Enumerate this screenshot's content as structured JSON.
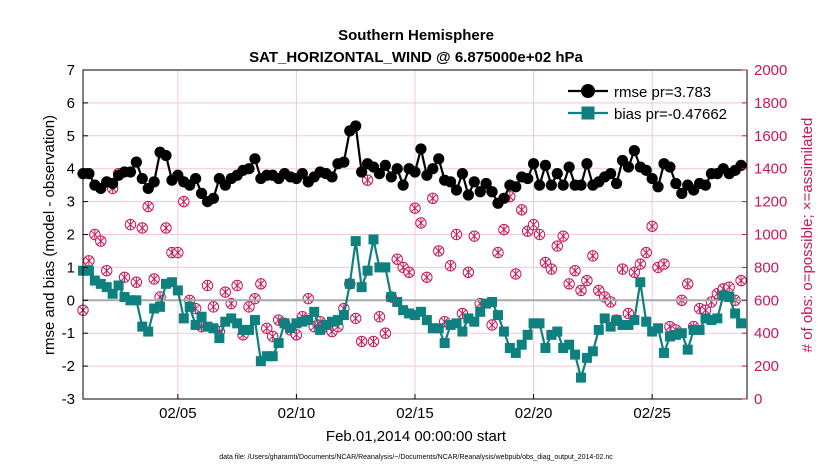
{
  "chart_data": {
    "type": "line",
    "title": "Southern Hemisphere",
    "subtitle": "SAT_HORIZONTAL_WIND @ 6.875000e+02 hPa",
    "xlabel": "Feb.01,2014 00:00:00 start",
    "ylabel": "rmse and bias (model - observation)",
    "y2label": "# of obs: o=possible; ×=assimilated",
    "footnote": "data file: /Users/gharamti/Documents/NCAR/Reanalysis/~/Documents/NCAR/Reanalysis/webpub/obs_diag_output_2014-02.nc",
    "xlim": [
      1,
      29
    ],
    "ylim": [
      -3,
      7
    ],
    "y2lim": [
      0,
      2000
    ],
    "x_ticks": [
      5,
      10,
      15,
      20,
      25
    ],
    "x_tick_labels": [
      "02/05",
      "02/10",
      "02/15",
      "02/20",
      "02/25"
    ],
    "y_ticks": [
      -3,
      -2,
      -1,
      0,
      1,
      2,
      3,
      4,
      5,
      6,
      7
    ],
    "y_tick_labels": [
      "-3",
      "-2",
      "-1",
      "0",
      "1",
      "2",
      "3",
      "4",
      "5",
      "6",
      "7"
    ],
    "y2_ticks": [
      0,
      200,
      400,
      600,
      800,
      1000,
      1200,
      1400,
      1600,
      1800,
      2000
    ],
    "y2_tick_labels": [
      "0",
      "200",
      "400",
      "600",
      "800",
      "1000",
      "1200",
      "1400",
      "1600",
      "1800",
      "2000"
    ],
    "grid": true,
    "legend_position": "top-right",
    "colors": {
      "rmse": "#000000",
      "bias": "#0f8080",
      "obs": "#c8185a",
      "zero_line": "#a8a8a8",
      "grid": "#f0c8d8"
    },
    "series": [
      {
        "name": "rmse pr=3.783",
        "marker": "circle",
        "x": [
          1.0,
          1.25,
          1.5,
          1.75,
          2.0,
          2.25,
          2.5,
          2.75,
          3.0,
          3.25,
          3.5,
          3.75,
          4.0,
          4.25,
          4.5,
          4.75,
          5.0,
          5.25,
          5.5,
          5.75,
          6.0,
          6.25,
          6.5,
          6.75,
          7.0,
          7.25,
          7.5,
          7.75,
          8.0,
          8.25,
          8.5,
          8.75,
          9.0,
          9.25,
          9.5,
          9.75,
          10.0,
          10.25,
          10.5,
          10.75,
          11.0,
          11.25,
          11.5,
          11.75,
          12.0,
          12.25,
          12.5,
          12.75,
          13.0,
          13.25,
          13.5,
          13.75,
          14.0,
          14.25,
          14.5,
          14.75,
          15.0,
          15.25,
          15.5,
          15.75,
          16.0,
          16.25,
          16.5,
          16.75,
          17.0,
          17.25,
          17.5,
          17.75,
          18.0,
          18.25,
          18.5,
          18.75,
          19.0,
          19.25,
          19.5,
          19.75,
          20.0,
          20.25,
          20.5,
          20.75,
          21.0,
          21.25,
          21.5,
          21.75,
          22.0,
          22.25,
          22.5,
          22.75,
          23.0,
          23.25,
          23.5,
          23.75,
          24.0,
          24.25,
          24.5,
          24.75,
          25.0,
          25.25,
          25.5,
          25.75,
          26.0,
          26.25,
          26.5,
          26.75,
          27.0,
          27.25,
          27.5,
          27.75,
          28.0,
          28.25,
          28.5,
          28.75
        ],
        "values": [
          3.85,
          3.85,
          3.5,
          3.4,
          3.6,
          3.55,
          3.8,
          3.9,
          3.9,
          4.2,
          3.7,
          3.4,
          3.6,
          4.5,
          4.4,
          3.65,
          3.8,
          3.6,
          3.5,
          3.7,
          3.25,
          3.0,
          3.1,
          3.7,
          3.5,
          3.7,
          3.8,
          3.95,
          4.0,
          4.3,
          3.7,
          3.8,
          3.8,
          3.7,
          3.85,
          3.75,
          3.7,
          3.85,
          3.6,
          3.75,
          3.9,
          3.85,
          3.75,
          4.15,
          4.2,
          5.15,
          5.3,
          3.9,
          4.15,
          4.05,
          3.85,
          4.1,
          3.75,
          4.0,
          3.5,
          4.0,
          3.9,
          4.6,
          3.8,
          4.0,
          4.3,
          3.65,
          3.6,
          3.35,
          3.85,
          3.2,
          3.6,
          3.3,
          3.55,
          3.3,
          2.95,
          3.1,
          3.5,
          3.45,
          3.75,
          3.7,
          4.15,
          3.5,
          4.1,
          3.5,
          3.85,
          3.5,
          4.05,
          3.5,
          3.5,
          4.15,
          3.5,
          3.6,
          3.75,
          3.85,
          3.55,
          4.25,
          4.05,
          4.55,
          4.05,
          3.95,
          3.7,
          3.45,
          4.15,
          4.05,
          3.55,
          3.25,
          3.5,
          3.35,
          3.55,
          3.5,
          3.85,
          3.85,
          4.0,
          3.85,
          3.95,
          4.1
        ]
      },
      {
        "name": "bias pr=-0.47662",
        "marker": "square",
        "x": [
          1.0,
          1.25,
          1.5,
          1.75,
          2.0,
          2.25,
          2.5,
          2.75,
          3.0,
          3.25,
          3.5,
          3.75,
          4.0,
          4.25,
          4.5,
          4.75,
          5.0,
          5.25,
          5.5,
          5.75,
          6.0,
          6.25,
          6.5,
          6.75,
          7.0,
          7.25,
          7.5,
          7.75,
          8.0,
          8.25,
          8.5,
          8.75,
          9.0,
          9.25,
          9.5,
          9.75,
          10.0,
          10.25,
          10.5,
          10.75,
          11.0,
          11.25,
          11.5,
          11.75,
          12.0,
          12.25,
          12.5,
          12.75,
          13.0,
          13.25,
          13.5,
          13.75,
          14.0,
          14.25,
          14.5,
          14.75,
          15.0,
          15.25,
          15.5,
          15.75,
          16.0,
          16.25,
          16.5,
          16.75,
          17.0,
          17.25,
          17.5,
          17.75,
          18.0,
          18.25,
          18.5,
          18.75,
          19.0,
          19.25,
          19.5,
          19.75,
          20.0,
          20.25,
          20.5,
          20.75,
          21.0,
          21.25,
          21.5,
          21.75,
          22.0,
          22.25,
          22.5,
          22.75,
          23.0,
          23.25,
          23.5,
          23.75,
          24.0,
          24.25,
          24.5,
          24.75,
          25.0,
          25.25,
          25.5,
          25.75,
          26.0,
          26.25,
          26.5,
          26.75,
          27.0,
          27.25,
          27.5,
          27.75,
          28.0,
          28.25,
          28.5,
          28.75
        ],
        "values": [
          0.9,
          0.9,
          0.6,
          0.5,
          0.4,
          0.2,
          0.45,
          0.1,
          0.0,
          0.0,
          -0.8,
          -0.95,
          -0.25,
          -0.2,
          0.5,
          0.55,
          0.3,
          -0.55,
          -0.2,
          -0.75,
          -0.5,
          -0.8,
          -0.85,
          -1.15,
          -0.65,
          -0.55,
          -0.7,
          -0.9,
          -0.9,
          -0.6,
          -1.85,
          -1.7,
          -1.7,
          -1.3,
          -0.7,
          -0.85,
          -0.7,
          -0.65,
          -0.6,
          -0.35,
          -0.9,
          -0.75,
          -0.65,
          -0.6,
          -0.45,
          0.5,
          1.8,
          0.4,
          0.9,
          1.85,
          1.0,
          1.0,
          0.1,
          -0.05,
          -0.3,
          -0.4,
          -0.45,
          -0.35,
          -0.6,
          -0.85,
          -0.85,
          -1.3,
          -0.75,
          -0.7,
          -0.95,
          -0.55,
          -0.65,
          -0.35,
          -0.1,
          -0.05,
          -0.45,
          -0.95,
          -1.45,
          -1.6,
          -1.35,
          -1.05,
          -0.7,
          -0.7,
          -1.45,
          -1.05,
          -0.95,
          -1.45,
          -1.35,
          -1.65,
          -2.35,
          -1.75,
          -1.55,
          -0.9,
          -0.55,
          -0.8,
          -0.6,
          -0.75,
          -0.75,
          -0.6,
          0.55,
          -0.65,
          -0.95,
          -0.85,
          -1.6,
          -1.1,
          -1.05,
          -1.0,
          -1.5,
          -0.9,
          -0.9,
          -0.55,
          -0.6,
          -0.55,
          0.15,
          0.1,
          -0.4,
          -0.7
        ]
      },
      {
        "name": "possible / assimilated observations",
        "marker": "circle-x",
        "axis": "right",
        "x": [
          1.0,
          1.25,
          1.5,
          1.75,
          2.0,
          2.25,
          2.5,
          2.75,
          3.0,
          3.25,
          3.5,
          3.75,
          4.0,
          4.25,
          4.5,
          4.75,
          5.0,
          5.25,
          5.5,
          5.75,
          6.0,
          6.25,
          6.5,
          6.75,
          7.0,
          7.25,
          7.5,
          7.75,
          8.0,
          8.25,
          8.5,
          8.75,
          9.0,
          9.25,
          9.5,
          9.75,
          10.0,
          10.25,
          10.5,
          10.75,
          11.0,
          11.25,
          11.5,
          11.75,
          12.0,
          12.25,
          12.5,
          12.75,
          13.0,
          13.25,
          13.5,
          13.75,
          14.0,
          14.25,
          14.5,
          14.75,
          15.0,
          15.25,
          15.5,
          15.75,
          16.0,
          16.25,
          16.5,
          16.75,
          17.0,
          17.25,
          17.5,
          17.75,
          18.0,
          18.25,
          18.5,
          18.75,
          19.0,
          19.25,
          19.5,
          19.75,
          20.0,
          20.25,
          20.5,
          20.75,
          21.0,
          21.25,
          21.5,
          21.75,
          22.0,
          22.25,
          22.5,
          22.75,
          23.0,
          23.25,
          23.5,
          23.75,
          24.0,
          24.25,
          24.5,
          24.75,
          25.0,
          25.25,
          25.5,
          25.75,
          26.0,
          26.25,
          26.5,
          26.75,
          27.0,
          27.25,
          27.5,
          27.75,
          28.0,
          28.25,
          28.5,
          28.75
        ],
        "values": [
          540,
          840,
          1000,
          960,
          780,
          1280,
          1370,
          740,
          1060,
          710,
          1040,
          1170,
          730,
          620,
          1040,
          890,
          890,
          1200,
          600,
          550,
          440,
          690,
          560,
          410,
          650,
          580,
          690,
          390,
          560,
          610,
          700,
          430,
          380,
          480,
          460,
          420,
          390,
          500,
          610,
          440,
          470,
          440,
          410,
          440,
          550,
          700,
          490,
          350,
          1330,
          350,
          500,
          400,
          620,
          850,
          800,
          770,
          1160,
          1070,
          740,
          1220,
          900,
          470,
          810,
          1000,
          520,
          770,
          990,
          580,
          1290,
          450,
          890,
          1030,
          1230,
          760,
          1150,
          1020,
          1060,
          1000,
          830,
          790,
          930,
          990,
          700,
          780,
          660,
          720,
          870,
          660,
          620,
          590,
          480,
          790,
          520,
          770,
          820,
          890,
          1050,
          800,
          820,
          440,
          420,
          600,
          700,
          440,
          550,
          540,
          590,
          640,
          670,
          680,
          600,
          720
        ]
      }
    ]
  }
}
